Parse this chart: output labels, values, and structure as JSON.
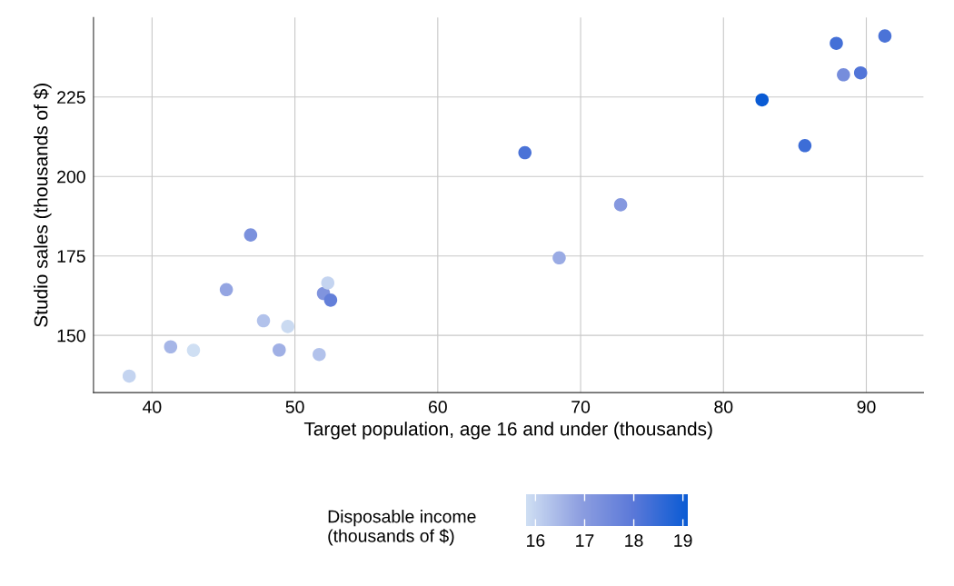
{
  "chart_data": {
    "type": "scatter",
    "xlabel": "Target population, age 16 and under (thousands)",
    "ylabel": "Studio sales (thousands of $)",
    "clabel": "Disposable income\n(thousands of $)",
    "x": [
      68.5,
      45.2,
      91.3,
      47.8,
      46.9,
      66.1,
      49.5,
      52.0,
      48.9,
      38.4,
      87.9,
      72.8,
      88.4,
      42.9,
      52.5,
      85.7,
      41.3,
      51.7,
      89.6,
      82.7,
      52.3
    ],
    "values": [
      174.4,
      164.4,
      244.2,
      154.6,
      181.6,
      207.5,
      152.8,
      163.2,
      145.4,
      137.2,
      241.9,
      191.1,
      232.0,
      145.3,
      161.1,
      209.7,
      146.4,
      144.0,
      232.6,
      224.1,
      166.5
    ],
    "cvalues": [
      16.7,
      16.8,
      18.2,
      16.3,
      17.3,
      18.2,
      15.9,
      17.2,
      16.6,
      16.0,
      18.3,
      17.1,
      17.4,
      15.8,
      17.8,
      18.4,
      16.5,
      16.3,
      18.1,
      19.1,
      16.0
    ],
    "clim": [
      15.8,
      19.1
    ],
    "cticks": [
      16,
      17,
      18,
      19
    ],
    "xlim": [
      35.9,
      94
    ],
    "xticks": [
      40,
      50,
      60,
      70,
      80,
      90
    ],
    "ylim": [
      132,
      250
    ],
    "yticks": [
      150,
      175,
      200,
      225
    ],
    "grid": true,
    "marker": "circle"
  }
}
